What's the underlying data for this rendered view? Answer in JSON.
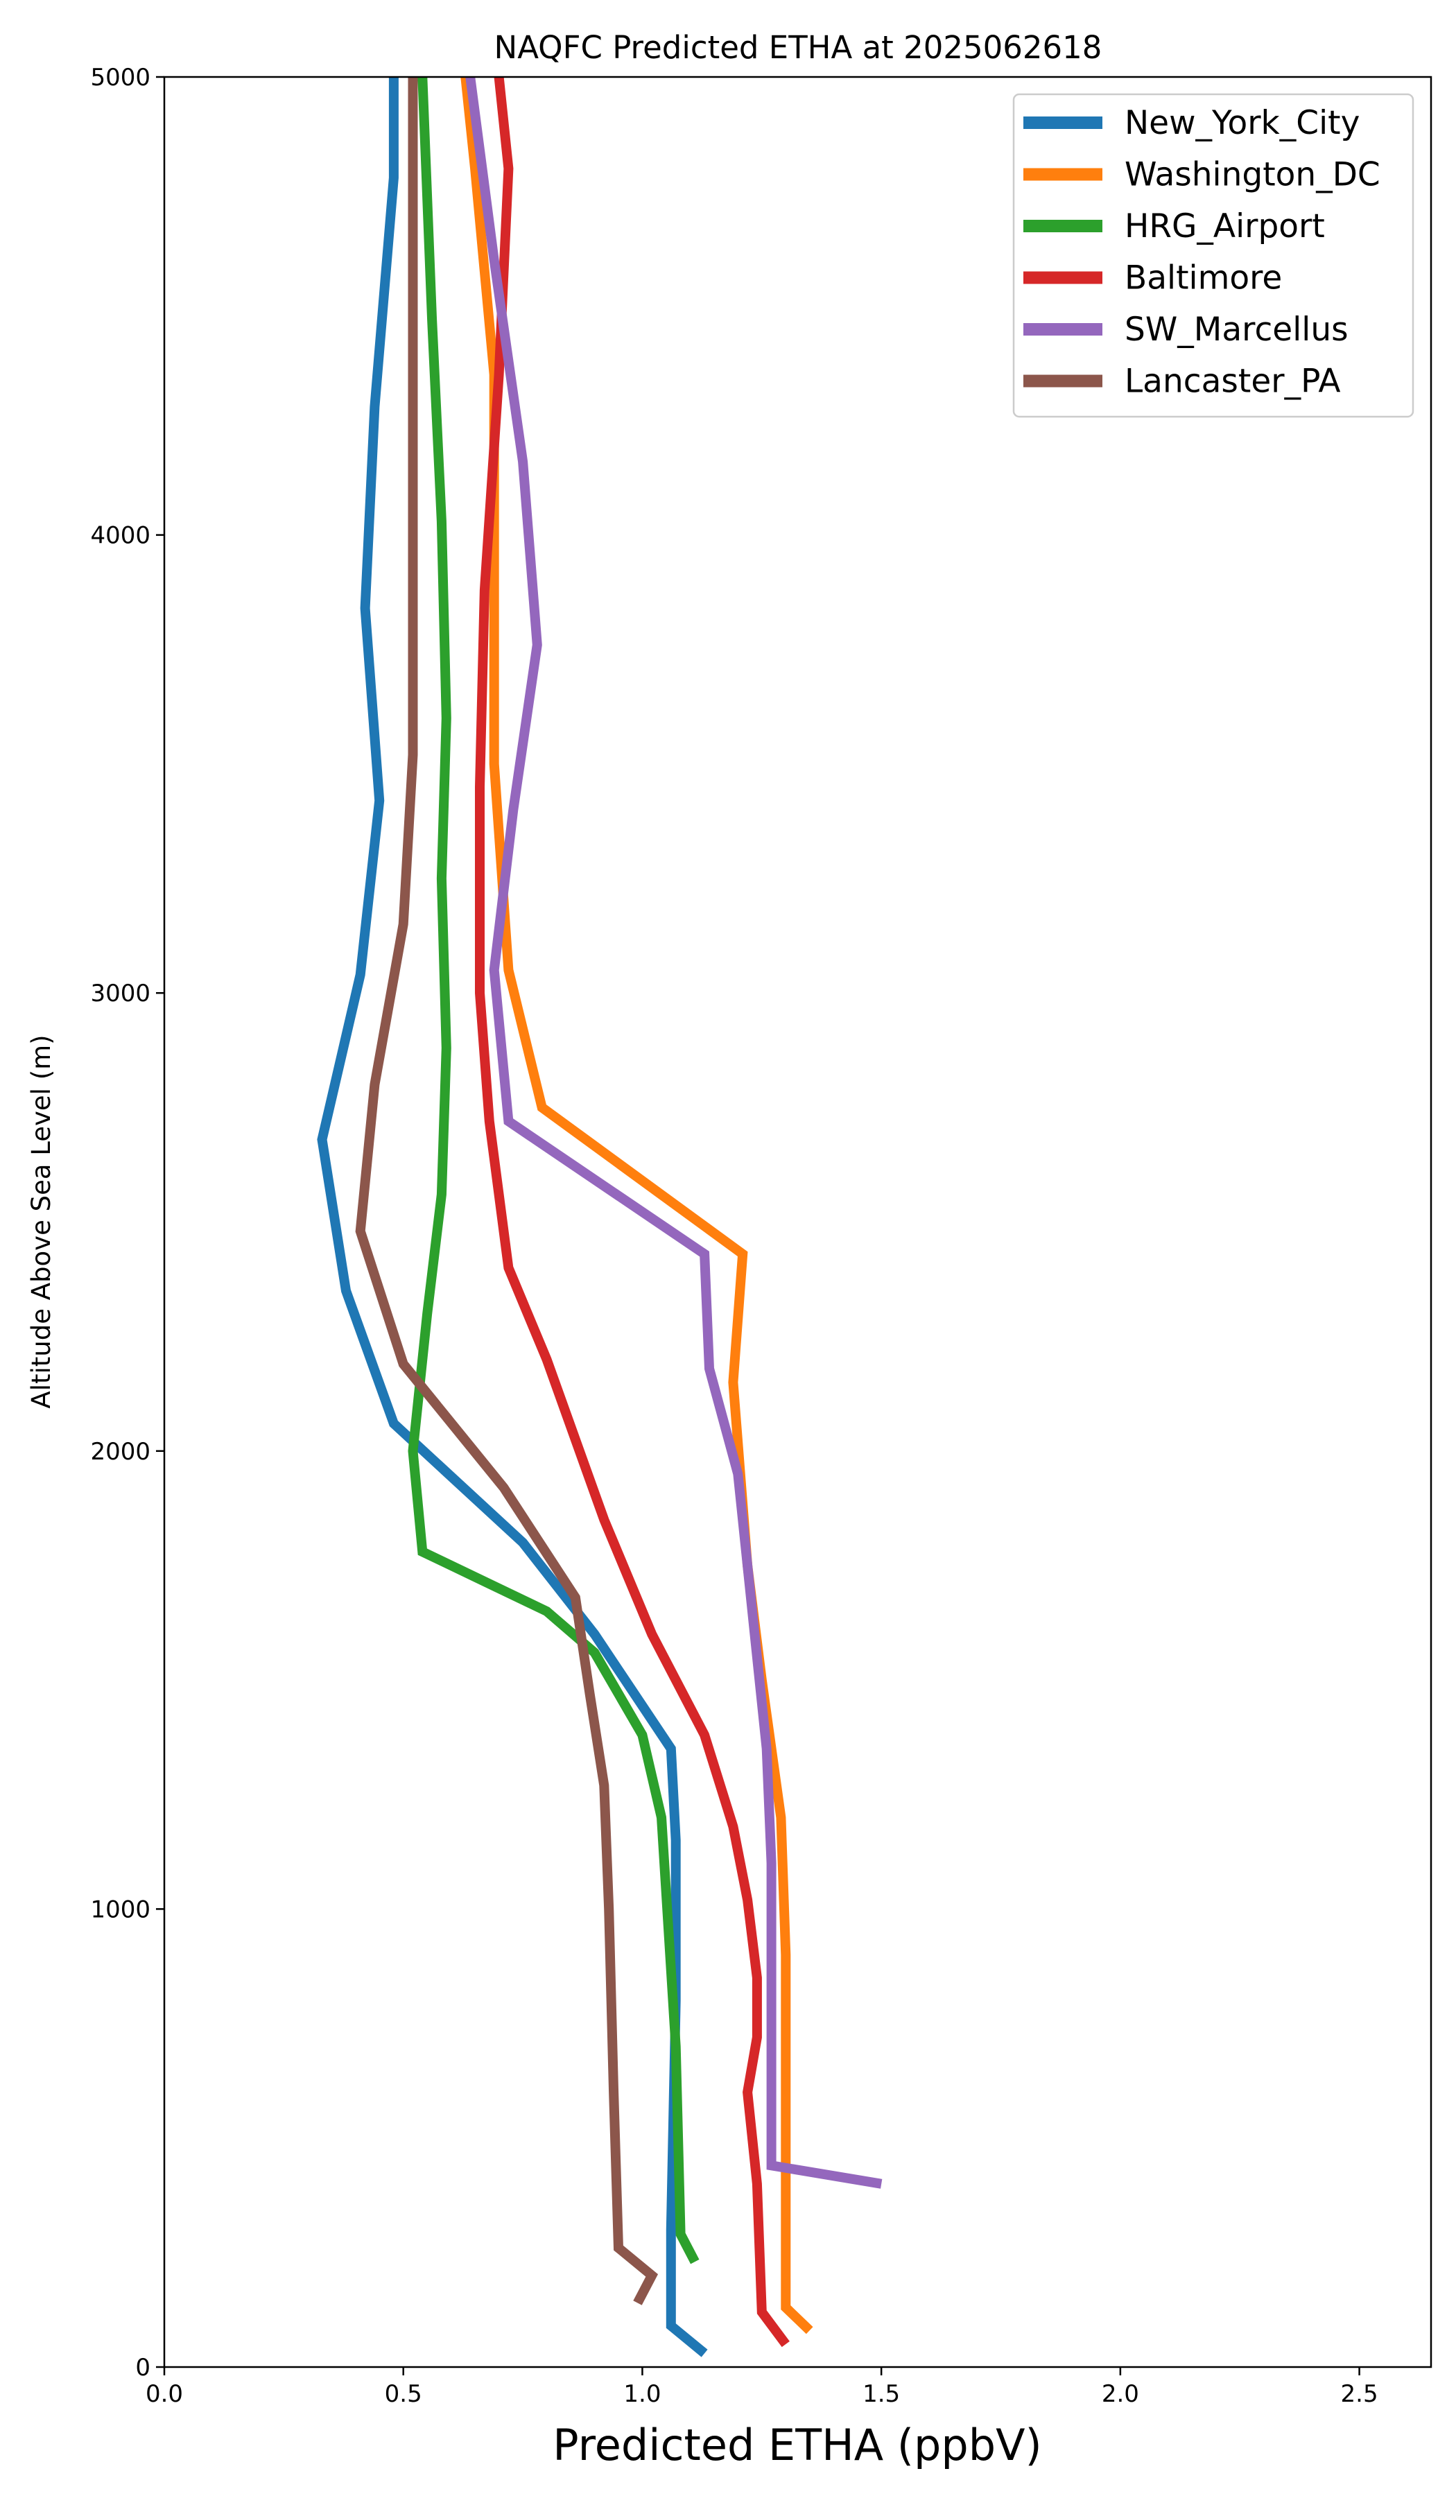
{
  "chart_data": {
    "type": "line",
    "title": "NAQFC Predicted ETHA at 2025062618",
    "xlabel": "Predicted ETHA (ppbV)",
    "ylabel": "Altitude Above Sea Level (m)",
    "xlim": [
      0,
      2.65
    ],
    "ylim": [
      0,
      5000
    ],
    "xticks": [
      "0.0",
      "0.5",
      "1.0",
      "1.5",
      "2.0",
      "2.5"
    ],
    "yticks": [
      "0",
      "1000",
      "2000",
      "3000",
      "4000",
      "5000"
    ],
    "grid": false,
    "legend": "top-right",
    "series": [
      {
        "name": "New_York_City",
        "color": "#1f77b4",
        "points": [
          [
            1.13,
            30
          ],
          [
            1.06,
            90
          ],
          [
            1.06,
            300
          ],
          [
            1.07,
            800
          ],
          [
            1.07,
            1150
          ],
          [
            1.06,
            1350
          ],
          [
            0.9,
            1600
          ],
          [
            0.75,
            1800
          ],
          [
            0.48,
            2060
          ],
          [
            0.38,
            2350
          ],
          [
            0.33,
            2680
          ],
          [
            0.41,
            3040
          ],
          [
            0.45,
            3420
          ],
          [
            0.42,
            3840
          ],
          [
            0.44,
            4280
          ],
          [
            0.48,
            4780
          ],
          [
            0.48,
            5000
          ]
        ]
      },
      {
        "name": "Washington_DC",
        "color": "#ff7f0e",
        "points": [
          [
            1.35,
            80
          ],
          [
            1.3,
            130
          ],
          [
            1.3,
            500
          ],
          [
            1.3,
            900
          ],
          [
            1.29,
            1200
          ],
          [
            1.25,
            1500
          ],
          [
            1.22,
            1750
          ],
          [
            1.19,
            2150
          ],
          [
            1.21,
            2430
          ],
          [
            0.79,
            2750
          ],
          [
            0.72,
            3050
          ],
          [
            0.69,
            3500
          ],
          [
            0.69,
            3900
          ],
          [
            0.69,
            4350
          ],
          [
            0.65,
            4800
          ],
          [
            0.63,
            5000
          ]
        ]
      },
      {
        "name": "HRG_Airport",
        "color": "#2ca02c",
        "points": [
          [
            1.11,
            230
          ],
          [
            1.08,
            290
          ],
          [
            1.07,
            700
          ],
          [
            1.04,
            1200
          ],
          [
            1.0,
            1380
          ],
          [
            0.9,
            1560
          ],
          [
            0.8,
            1650
          ],
          [
            0.54,
            1780
          ],
          [
            0.52,
            2000
          ],
          [
            0.55,
            2300
          ],
          [
            0.58,
            2560
          ],
          [
            0.59,
            2880
          ],
          [
            0.58,
            3250
          ],
          [
            0.59,
            3600
          ],
          [
            0.58,
            4030
          ],
          [
            0.56,
            4470
          ],
          [
            0.54,
            5000
          ]
        ]
      },
      {
        "name": "Baltimore",
        "color": "#d62728",
        "points": [
          [
            1.3,
            50
          ],
          [
            1.25,
            120
          ],
          [
            1.24,
            400
          ],
          [
            1.22,
            600
          ],
          [
            1.24,
            720
          ],
          [
            1.24,
            850
          ],
          [
            1.22,
            1020
          ],
          [
            1.19,
            1180
          ],
          [
            1.13,
            1380
          ],
          [
            1.02,
            1600
          ],
          [
            0.92,
            1850
          ],
          [
            0.8,
            2200
          ],
          [
            0.72,
            2400
          ],
          [
            0.68,
            2720
          ],
          [
            0.66,
            3000
          ],
          [
            0.66,
            3450
          ],
          [
            0.67,
            3880
          ],
          [
            0.7,
            4350
          ],
          [
            0.72,
            4800
          ],
          [
            0.7,
            5000
          ]
        ]
      },
      {
        "name": "SW_Marcellus",
        "color": "#9467bd",
        "points": [
          [
            1.5,
            400
          ],
          [
            1.27,
            440
          ],
          [
            1.27,
            800
          ],
          [
            1.27,
            1100
          ],
          [
            1.26,
            1350
          ],
          [
            1.24,
            1550
          ],
          [
            1.2,
            1950
          ],
          [
            1.14,
            2180
          ],
          [
            1.13,
            2430
          ],
          [
            0.72,
            2720
          ],
          [
            0.69,
            3050
          ],
          [
            0.73,
            3400
          ],
          [
            0.78,
            3760
          ],
          [
            0.75,
            4160
          ],
          [
            0.69,
            4600
          ],
          [
            0.64,
            5000
          ]
        ]
      },
      {
        "name": "Lancaster_PA",
        "color": "#8c564b",
        "points": [
          [
            0.99,
            140
          ],
          [
            1.02,
            200
          ],
          [
            0.95,
            260
          ],
          [
            0.94,
            600
          ],
          [
            0.93,
            1000
          ],
          [
            0.92,
            1270
          ],
          [
            0.89,
            1470
          ],
          [
            0.86,
            1680
          ],
          [
            0.71,
            1920
          ],
          [
            0.5,
            2190
          ],
          [
            0.41,
            2480
          ],
          [
            0.44,
            2800
          ],
          [
            0.5,
            3150
          ],
          [
            0.52,
            3520
          ],
          [
            0.52,
            4000
          ],
          [
            0.52,
            4500
          ],
          [
            0.52,
            5000
          ]
        ]
      }
    ]
  }
}
